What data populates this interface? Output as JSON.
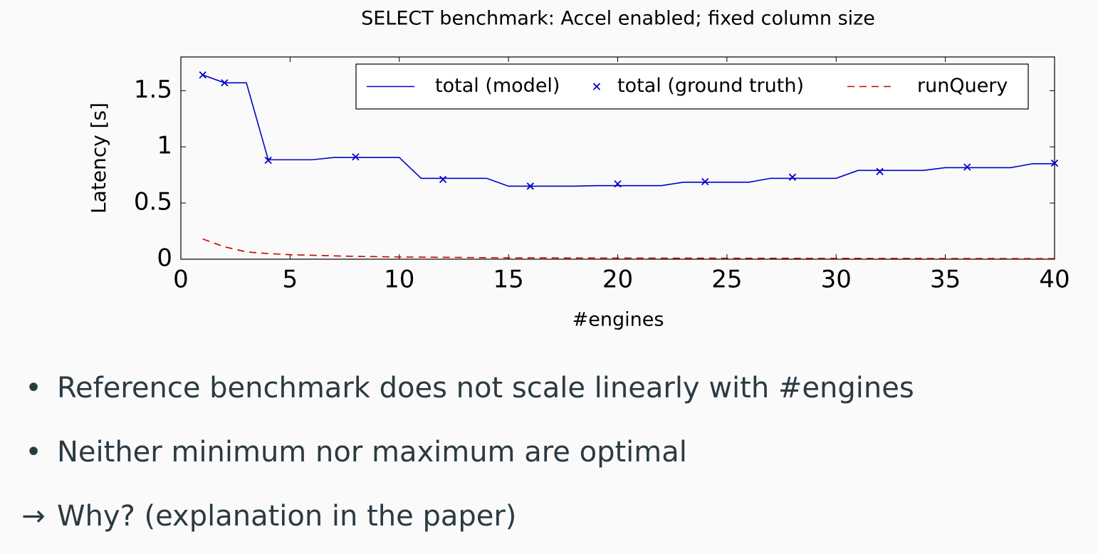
{
  "chart_data": {
    "type": "line",
    "title": "SELECT benchmark: Accel enabled; fixed column size",
    "xlabel": "#engines",
    "ylabel": "Latency [s]",
    "xlim": [
      0,
      40
    ],
    "xticks": [
      0,
      5,
      10,
      15,
      20,
      25,
      30,
      35,
      40
    ],
    "ylim": [
      0,
      1.8
    ],
    "yticks": [
      0,
      0.5,
      1,
      1.5
    ],
    "legend": "top right",
    "series": [
      {
        "name": "total (model)",
        "color": "#0000cc",
        "style": "line",
        "x": [
          1,
          2,
          3,
          4,
          5,
          6,
          7,
          8,
          9,
          10,
          11,
          12,
          13,
          14,
          15,
          16,
          17,
          18,
          19,
          20,
          21,
          22,
          23,
          24,
          25,
          26,
          27,
          28,
          29,
          30,
          31,
          32,
          33,
          34,
          35,
          36,
          37,
          38,
          39,
          40
        ],
        "values": [
          1.64,
          1.57,
          1.57,
          0.885,
          0.885,
          0.885,
          0.905,
          0.905,
          0.905,
          0.905,
          0.72,
          0.72,
          0.72,
          0.72,
          0.65,
          0.65,
          0.65,
          0.65,
          0.655,
          0.655,
          0.655,
          0.655,
          0.685,
          0.685,
          0.685,
          0.685,
          0.72,
          0.72,
          0.72,
          0.72,
          0.79,
          0.79,
          0.79,
          0.79,
          0.815,
          0.815,
          0.815,
          0.815,
          0.85,
          0.85
        ]
      },
      {
        "name": "total (ground truth)",
        "color": "#0000cc",
        "style": "marker",
        "x": [
          1,
          2,
          4,
          8,
          12,
          16,
          20,
          24,
          28,
          32,
          36,
          40
        ],
        "values": [
          1.64,
          1.57,
          0.88,
          0.91,
          0.71,
          0.65,
          0.67,
          0.69,
          0.73,
          0.78,
          0.82,
          0.855
        ]
      },
      {
        "name": "runQuery",
        "color": "#cc0000",
        "style": "dashed",
        "x": [
          1,
          2,
          3,
          4,
          5,
          6,
          8,
          10,
          15,
          20,
          40
        ],
        "values": [
          0.18,
          0.11,
          0.065,
          0.05,
          0.04,
          0.035,
          0.025,
          0.02,
          0.012,
          0.01,
          0.005
        ]
      }
    ]
  },
  "bullets": [
    {
      "marker": "•",
      "text": "Reference benchmark does not scale linearly with #engines"
    },
    {
      "marker": "•",
      "text": "Neither minimum nor maximum are optimal"
    },
    {
      "marker": "→",
      "text": "Why? (explanation in the paper)"
    }
  ]
}
